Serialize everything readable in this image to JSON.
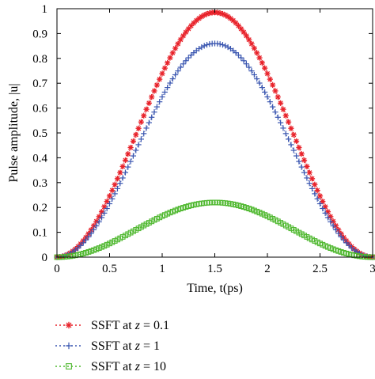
{
  "chart_data": {
    "type": "scatter",
    "xlabel": "Time, t(ps)",
    "ylabel": "Pulse amplitude, |u|",
    "xlim": [
      0,
      3
    ],
    "ylim": [
      0,
      1
    ],
    "x_ticks": [
      "0",
      "0.5",
      "1",
      "1.5",
      "2",
      "2.5",
      "3"
    ],
    "y_ticks": [
      "0",
      "0.1",
      "0.2",
      "0.3",
      "0.4",
      "0.5",
      "0.6",
      "0.7",
      "0.8",
      "0.9",
      "1"
    ],
    "grid": false,
    "legend_position": "bottom-left",
    "x_range_points": [
      0,
      3.0
    ],
    "num_points": 121,
    "series": [
      {
        "name": "SSFT at z = 0.1",
        "label_parts": [
          "SSFT at ",
          "z",
          " = 0.1"
        ],
        "peak": 0.985,
        "peak_x": 1.57,
        "marker": "asterisk",
        "color": "#e8222a"
      },
      {
        "name": "SSFT at z = 1",
        "label_parts": [
          "SSFT at ",
          "z",
          " = 1"
        ],
        "peak": 0.86,
        "peak_x": 1.57,
        "marker": "plus",
        "color": "#3a56b0"
      },
      {
        "name": "SSFT at z = 10",
        "label_parts": [
          "SSFT at ",
          "z",
          " = 10"
        ],
        "peak": 0.22,
        "peak_x": 1.6,
        "marker": "square",
        "color": "#4fb82f"
      }
    ]
  }
}
